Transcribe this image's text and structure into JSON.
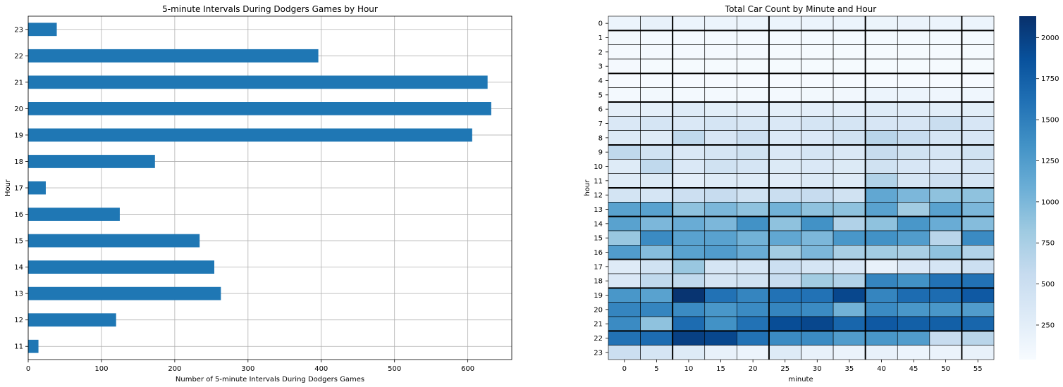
{
  "chart_data": [
    {
      "type": "bar",
      "orientation": "horizontal",
      "title": "5-minute Intervals During Dodgers Games by Hour",
      "xlabel": "Number of 5-minute Intervals During Dodgers Games",
      "ylabel": "Hour",
      "categories": [
        "11",
        "12",
        "13",
        "14",
        "15",
        "16",
        "17",
        "18",
        "19",
        "20",
        "21",
        "22",
        "23"
      ],
      "values": [
        14,
        120,
        263,
        254,
        234,
        125,
        24,
        173,
        606,
        632,
        627,
        396,
        39
      ],
      "xlim": [
        0,
        660
      ],
      "xticks": [
        0,
        100,
        200,
        300,
        400,
        500,
        600
      ],
      "grid": true,
      "bar_color": "#1f77b4"
    },
    {
      "type": "heatmap",
      "title": "Total Car Count by Minute and Hour",
      "xlabel": "minute",
      "ylabel": "hour",
      "x": [
        "0",
        "5",
        "10",
        "15",
        "20",
        "25",
        "30",
        "35",
        "40",
        "45",
        "50",
        "55"
      ],
      "y": [
        "0",
        "1",
        "2",
        "3",
        "4",
        "5",
        "6",
        "7",
        "8",
        "9",
        "10",
        "11",
        "12",
        "13",
        "14",
        "15",
        "16",
        "17",
        "18",
        "19",
        "20",
        "21",
        "22",
        "23"
      ],
      "z": [
        [
          150,
          200,
          150,
          150,
          150,
          150,
          150,
          150,
          160,
          170,
          150,
          150
        ],
        [
          90,
          80,
          80,
          80,
          80,
          80,
          80,
          80,
          80,
          80,
          80,
          80
        ],
        [
          70,
          70,
          70,
          70,
          70,
          60,
          60,
          60,
          60,
          60,
          60,
          60
        ],
        [
          70,
          60,
          60,
          60,
          60,
          60,
          60,
          60,
          60,
          60,
          60,
          60
        ],
        [
          50,
          50,
          50,
          50,
          50,
          50,
          50,
          50,
          50,
          50,
          50,
          50
        ],
        [
          80,
          90,
          80,
          80,
          80,
          80,
          90,
          100,
          150,
          150,
          120,
          120
        ],
        [
          230,
          240,
          300,
          260,
          250,
          240,
          250,
          250,
          300,
          280,
          270,
          260
        ],
        [
          350,
          400,
          350,
          400,
          370,
          350,
          400,
          400,
          380,
          380,
          520,
          380
        ],
        [
          320,
          300,
          600,
          380,
          500,
          330,
          350,
          450,
          650,
          550,
          400,
          380
        ],
        [
          600,
          450,
          350,
          400,
          450,
          350,
          400,
          350,
          550,
          450,
          400,
          450
        ],
        [
          300,
          600,
          350,
          450,
          400,
          320,
          350,
          320,
          450,
          380,
          350,
          400
        ],
        [
          300,
          320,
          250,
          300,
          300,
          280,
          330,
          300,
          700,
          400,
          500,
          400
        ],
        [
          420,
          400,
          500,
          550,
          450,
          520,
          550,
          450,
          1150,
          1000,
          900,
          900
        ],
        [
          1200,
          1200,
          900,
          1000,
          900,
          1050,
          900,
          900,
          1200,
          800,
          1200,
          1000
        ],
        [
          1200,
          1000,
          1100,
          1000,
          1350,
          900,
          1350,
          700,
          900,
          1300,
          1100,
          950
        ],
        [
          850,
          1400,
          1200,
          1200,
          1050,
          1150,
          1000,
          1300,
          1350,
          1250,
          650,
          1400
        ],
        [
          1250,
          950,
          1200,
          1250,
          1100,
          800,
          1000,
          750,
          800,
          750,
          900,
          700
        ],
        [
          300,
          450,
          850,
          400,
          400,
          500,
          400,
          350,
          200,
          350,
          400,
          500
        ],
        [
          350,
          600,
          600,
          400,
          450,
          550,
          800,
          700,
          1450,
          1350,
          1600,
          1600
        ],
        [
          1300,
          1200,
          2100,
          1600,
          1450,
          1600,
          1600,
          1950,
          1450,
          1650,
          1650,
          1800
        ],
        [
          1450,
          1450,
          1400,
          1300,
          1400,
          1450,
          1400,
          1050,
          1400,
          1300,
          1300,
          1250
        ],
        [
          1400,
          900,
          1650,
          1350,
          1600,
          1900,
          1950,
          1700,
          1800,
          1750,
          1750,
          1700
        ],
        [
          1600,
          1650,
          2000,
          1950,
          1600,
          1400,
          1400,
          1250,
          1300,
          1250,
          550,
          650
        ],
        [
          500,
          400,
          300,
          200,
          150,
          300,
          200,
          170,
          200,
          150,
          170,
          200
        ]
      ],
      "colorbar_ticks": [
        250,
        500,
        750,
        1000,
        1250,
        1500,
        1750,
        2000
      ],
      "vmin": 40,
      "vmax": 2130,
      "colormap": "Blues",
      "thick_lines_x": [
        "10",
        "25",
        "40",
        "55"
      ],
      "thick_lines_y": [
        "1",
        "4",
        "6",
        "9",
        "12",
        "14",
        "17",
        "19",
        "22"
      ]
    }
  ]
}
